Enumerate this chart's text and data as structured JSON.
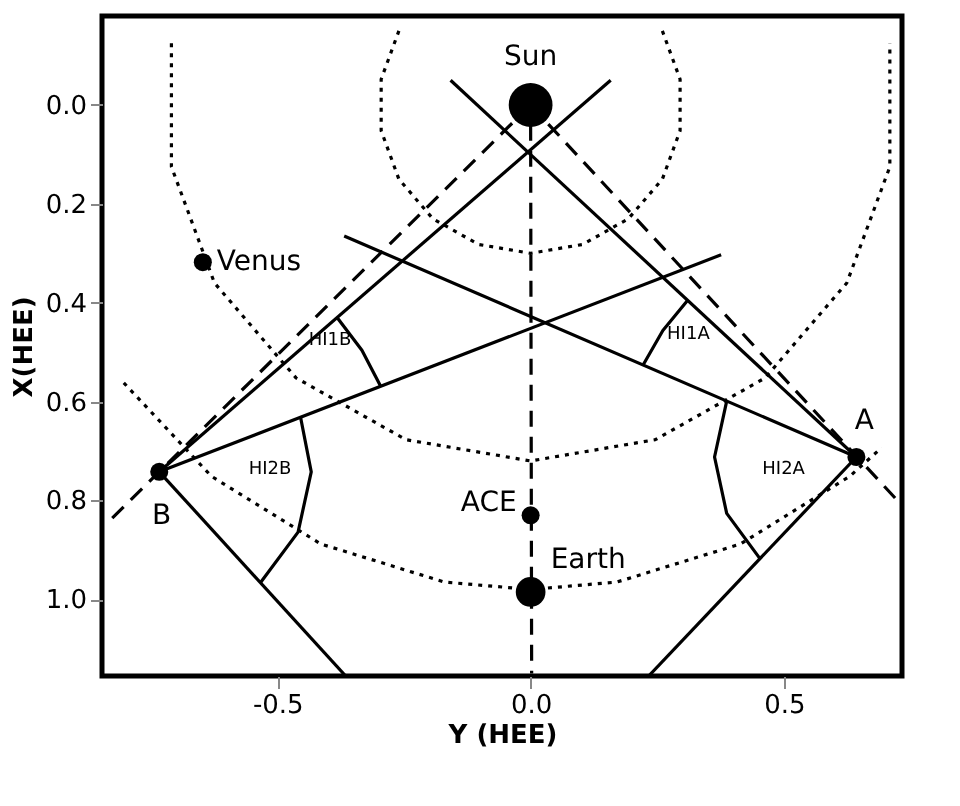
{
  "chart_data": {
    "type": "line",
    "xlabel": "Y (HEE)",
    "ylabel": "X(HEE)",
    "xlim": [
      -0.846,
      0.733
    ],
    "ylim": [
      1.155,
      -0.18
    ],
    "xticks": [
      -0.5,
      {
        "value": 0,
        "label": "0.0"
      },
      0.5
    ],
    "yticks": [
      {
        "value": 0,
        "label": "0.0"
      },
      0.2,
      0.4,
      0.6,
      0.8,
      {
        "value": 1,
        "label": "1.0"
      }
    ],
    "series": [
      {
        "line_style": "dotted",
        "color": "#000000",
        "x": [
          -0.26,
          -0.295,
          -0.295,
          -0.26,
          -0.193,
          -0.103,
          0,
          0.103,
          0.193,
          0.26,
          0.295,
          0.295,
          0.26
        ],
        "values": [
          -0.15,
          -0.052,
          0.052,
          0.15,
          0.23,
          0.282,
          0.3,
          0.282,
          0.23,
          0.15,
          0.052,
          -0.052,
          -0.15
        ]
      },
      {
        "line_style": "dotted",
        "color": "#000000",
        "x": [
          -0.709,
          -0.709,
          -0.624,
          -0.463,
          -0.246,
          0,
          0.246,
          0.463,
          0.624,
          0.709,
          0.709
        ],
        "values": [
          -0.125,
          0.125,
          0.36,
          0.552,
          0.677,
          0.72,
          0.677,
          0.552,
          0.36,
          0.125,
          -0.125
        ]
      },
      {
        "line_style": "dotted",
        "color": "#000000",
        "x": [
          -0.803,
          -0.63,
          -0.414,
          -0.17,
          0,
          0.17,
          0.414,
          0.63,
          0.693
        ],
        "values": [
          0.562,
          0.751,
          0.888,
          0.965,
          0.98,
          0.965,
          0.888,
          0.751,
          0.693
        ]
      },
      {
        "line_style": "dashed",
        "color": "#000000",
        "x": [
          0,
          0.002
        ],
        "values": [
          0.04,
          1.15
        ]
      },
      {
        "line_style": "dashed",
        "color": "#000000",
        "x": [
          0,
          -0.835
        ],
        "values": [
          0,
          0.845
        ]
      },
      {
        "line_style": "dashed",
        "color": "#000000",
        "x": [
          0,
          0.733
        ],
        "values": [
          0,
          0.81
        ]
      },
      {
        "line_style": "solid",
        "color": "#000000",
        "x": [
          -0.733,
          0.158
        ],
        "values": [
          0.742,
          -0.05
        ]
      },
      {
        "line_style": "solid",
        "color": "#000000",
        "x": [
          0.643,
          -0.158
        ],
        "values": [
          0.712,
          -0.05
        ]
      },
      {
        "line_style": "solid",
        "color": "#000000",
        "x": [
          -0.733,
          0.376
        ],
        "values": [
          0.742,
          0.303
        ]
      },
      {
        "line_style": "solid",
        "color": "#000000",
        "x": [
          0.643,
          -0.368
        ],
        "values": [
          0.712,
          0.265
        ]
      },
      {
        "line_style": "solid",
        "color": "#000000",
        "x": [
          -0.733,
          -0.365
        ],
        "values": [
          0.742,
          1.155
        ]
      },
      {
        "line_style": "solid",
        "color": "#000000",
        "x": [
          0.643,
          0.233
        ],
        "values": [
          0.712,
          1.155
        ]
      },
      {
        "line_style": "solid",
        "color": "#000000",
        "x": [
          -0.382,
          -0.333,
          -0.296
        ],
        "values": [
          0.43,
          0.496,
          0.569
        ]
      },
      {
        "line_style": "solid",
        "color": "#000000",
        "x": [
          -0.454,
          -0.433,
          -0.459,
          -0.533
        ],
        "values": [
          0.632,
          0.742,
          0.864,
          0.966
        ]
      },
      {
        "line_style": "solid",
        "color": "#000000",
        "x": [
          0.31,
          0.261,
          0.222
        ],
        "values": [
          0.395,
          0.456,
          0.526
        ]
      },
      {
        "line_style": "solid",
        "color": "#000000",
        "x": [
          0.387,
          0.363,
          0.387,
          0.453
        ],
        "values": [
          0.599,
          0.712,
          0.826,
          0.918
        ]
      },
      {
        "type": "bubble",
        "name": "Sun",
        "color": "#000000",
        "x": [
          0
        ],
        "values": [
          0
        ],
        "sizes": [
          1
        ]
      },
      {
        "type": "bubble",
        "name": "Venus",
        "color": "#000000",
        "x": [
          -0.647
        ],
        "values": [
          0.318
        ],
        "sizes": [
          0.17
        ]
      },
      {
        "type": "bubble",
        "name": "B",
        "color": "#000000",
        "x": [
          -0.733
        ],
        "values": [
          0.742
        ],
        "sizes": [
          0.17
        ]
      },
      {
        "type": "bubble",
        "name": "A",
        "color": "#000000",
        "x": [
          0.643
        ],
        "values": [
          0.712
        ],
        "sizes": [
          0.17
        ]
      },
      {
        "type": "bubble",
        "name": "ACE",
        "color": "#000000",
        "x": [
          0
        ],
        "values": [
          0.83
        ],
        "sizes": [
          0.17
        ]
      },
      {
        "type": "bubble",
        "name": "Earth",
        "color": "#000000",
        "x": [
          0
        ],
        "values": [
          0.985
        ],
        "sizes": [
          0.46
        ]
      }
    ],
    "annotations": [
      "HI1B",
      "HI2B",
      "HI1A",
      "HI2A"
    ]
  }
}
